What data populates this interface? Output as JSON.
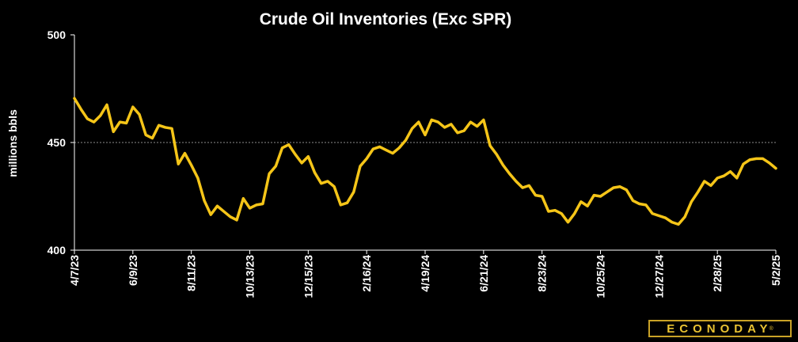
{
  "chart_data": {
    "type": "line",
    "title": "Crude Oil Inventories (Exc SPR)",
    "ylabel": "millions bbls",
    "xlabel": "",
    "ylim": [
      400,
      500
    ],
    "yticks": [
      400,
      450,
      500
    ],
    "gridline": 450,
    "line_color": "#f5c518",
    "xtick_labels": [
      "4/7/23",
      "6/9/23",
      "8/11/23",
      "10/13/23",
      "12/15/23",
      "2/16/24",
      "4/19/24",
      "6/21/24",
      "8/23/24",
      "10/25/24",
      "12/27/24",
      "2/28/25",
      "5/2/25"
    ],
    "series": [
      {
        "values": [
          470.5,
          465.5,
          461,
          459.5,
          462.5,
          467.5,
          455,
          459.5,
          459,
          466.5,
          463,
          453.5,
          452,
          458,
          457,
          456.5,
          440,
          445,
          439.5,
          433.5,
          423,
          416.5,
          420.5,
          418,
          415.5,
          414,
          424,
          419.5,
          421,
          421.5,
          435.5,
          439,
          447.5,
          449,
          444.5,
          440.5,
          443.5,
          436,
          431,
          432,
          429.5,
          421,
          422,
          427,
          439,
          442.5,
          447,
          448,
          446.5,
          445,
          447.5,
          451,
          456.5,
          459.5,
          453.5,
          460.5,
          459.5,
          457,
          458.5,
          454.5,
          455.5,
          459.5,
          457.5,
          460.5,
          448.5,
          444.5,
          439.5,
          435.5,
          432,
          429,
          430,
          425.5,
          425,
          418,
          418.5,
          417,
          413,
          417,
          422.5,
          420.5,
          425.5,
          425,
          427,
          429,
          429.5,
          428,
          423,
          421.5,
          421,
          417,
          416,
          415,
          413,
          412,
          415.5,
          422.5,
          427,
          432,
          430,
          433.5,
          434.5,
          436.5,
          433.5,
          440,
          442,
          442.5,
          442.5,
          440.5,
          438
        ]
      }
    ]
  },
  "branding": {
    "logo_text": "ECONODAY",
    "logo_mark": "®"
  }
}
